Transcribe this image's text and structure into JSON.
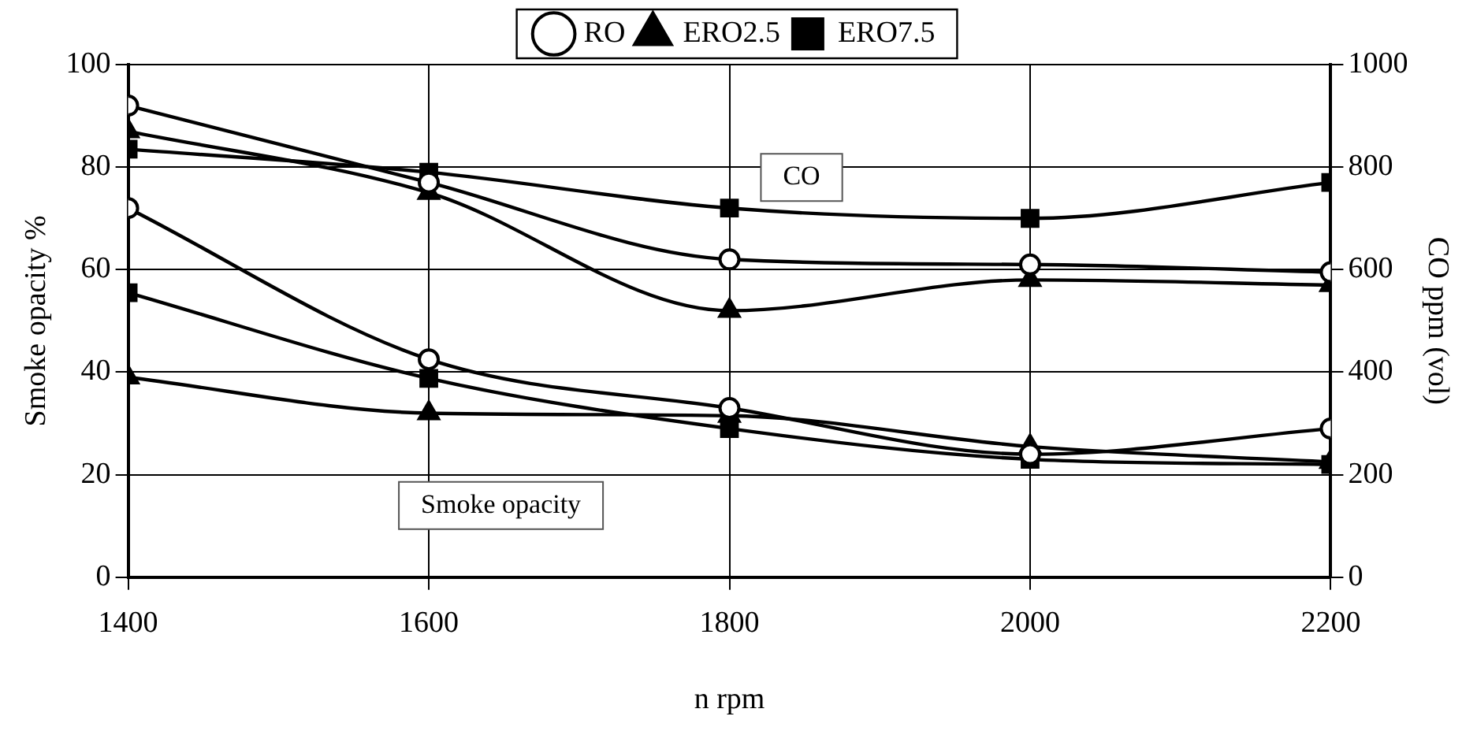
{
  "chart_data": {
    "type": "line",
    "xlabel": "n rpm",
    "ylabel": "Smoke opacity %",
    "y2label": "CO ppm (vol)",
    "x": [
      1400,
      1600,
      1800,
      2000,
      2200
    ],
    "series": [
      {
        "name": "RO",
        "color": "#000000",
        "marker": "circle",
        "values": [
          72,
          42.5,
          33,
          24,
          29
        ]
      },
      {
        "name": "ERO2.5",
        "color": "#000000",
        "marker": "triangle",
        "values": [
          39,
          32,
          31.5,
          25.5,
          22.5
        ]
      },
      {
        "name": "ERO7.5",
        "color": "#000000",
        "marker": "square",
        "values": [
          55.5,
          38.8,
          29,
          23,
          22
        ]
      },
      {
        "color": "#000000",
        "marker": "circle",
        "axis": "y2",
        "values": [
          920,
          770,
          620,
          610,
          595
        ]
      },
      {
        "color": "#000000",
        "marker": "triangle",
        "axis": "y2",
        "values": [
          870,
          750,
          520,
          580,
          570
        ]
      },
      {
        "color": "#000000",
        "marker": "square",
        "axis": "y2",
        "values": [
          835,
          790,
          720,
          700,
          770
        ]
      }
    ],
    "xlim": [
      1400,
      2200
    ],
    "xticks": [
      1400,
      1600,
      1800,
      2000,
      2200
    ],
    "ylim": [
      0,
      100
    ],
    "yticks": [
      0,
      20,
      40,
      60,
      80,
      100
    ],
    "y2lim": [
      0,
      1000
    ],
    "y2ticks": [
      0,
      200,
      400,
      600,
      800,
      1000
    ],
    "annotations": [
      "CO",
      "Smoke opacity"
    ],
    "grid": true,
    "legend": "top",
    "line_style": "solid"
  }
}
